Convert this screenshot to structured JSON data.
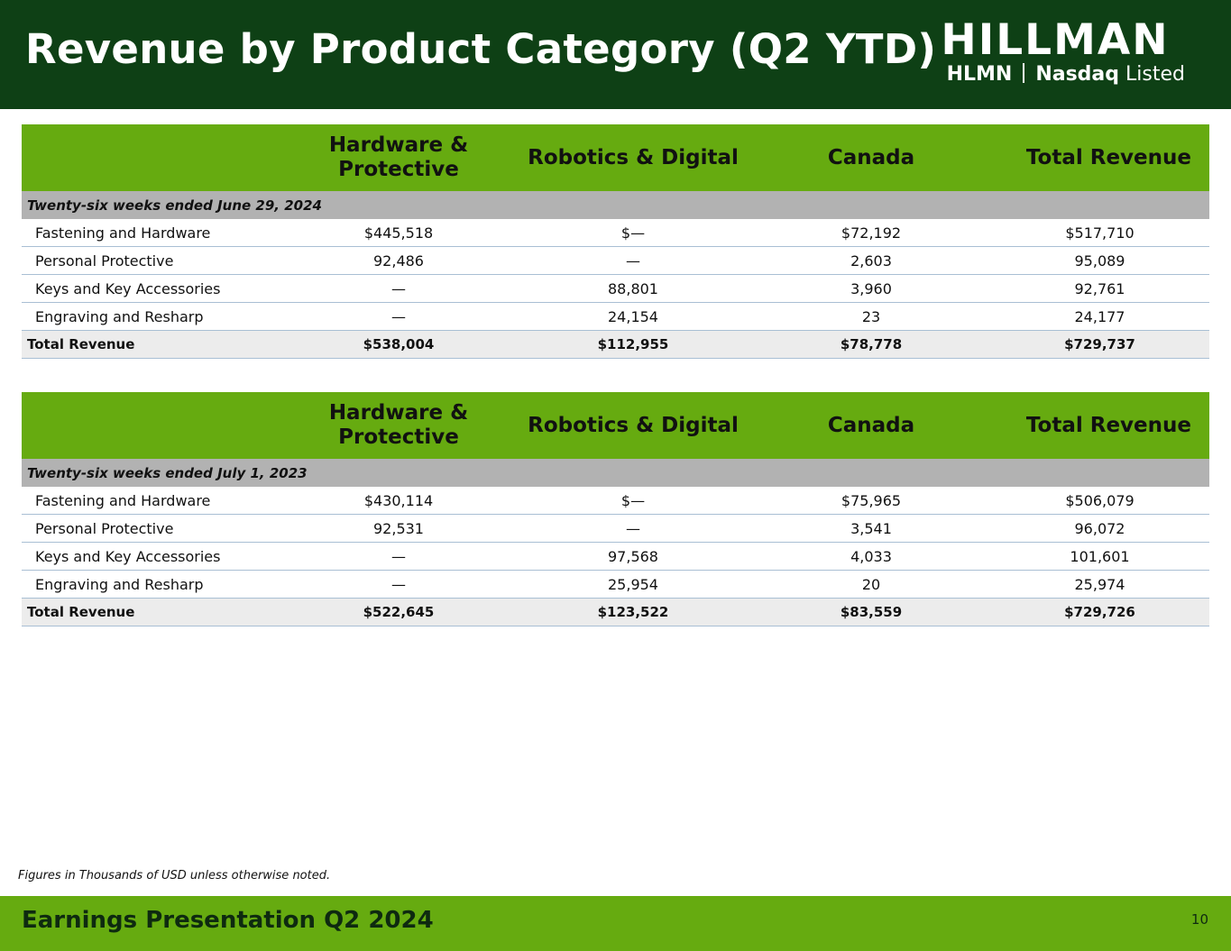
{
  "header": {
    "title": "Revenue by Product Category (Q2 YTD)",
    "logo": {
      "wordmark": "HILLMAN",
      "ticker": "HLMN",
      "exchange_bold": "Nasdaq",
      "exchange_rest": "Listed"
    }
  },
  "columns": [
    "",
    "Hardware & Protective",
    "Robotics & Digital",
    "Canada",
    "Total Revenue"
  ],
  "tables": [
    {
      "period": "Twenty-six weeks ended June 29, 2024",
      "rows": [
        {
          "label": "Fastening and Hardware",
          "values": [
            "$445,518",
            "$—",
            "$72,192",
            "$517,710"
          ]
        },
        {
          "label": "Personal Protective",
          "values": [
            "92,486",
            "—",
            "2,603",
            "95,089"
          ]
        },
        {
          "label": "Keys and Key Accessories",
          "values": [
            "—",
            "88,801",
            "3,960",
            "92,761"
          ]
        },
        {
          "label": "Engraving and Resharp",
          "values": [
            "—",
            "24,154",
            "23",
            "24,177"
          ]
        }
      ],
      "total": {
        "label": "Total Revenue",
        "values": [
          "$538,004",
          "$112,955",
          "$78,778",
          "$729,737"
        ]
      }
    },
    {
      "period": "Twenty-six weeks ended July 1, 2023",
      "rows": [
        {
          "label": "Fastening and Hardware",
          "values": [
            "$430,114",
            "$—",
            "$75,965",
            "$506,079"
          ]
        },
        {
          "label": "Personal Protective",
          "values": [
            "92,531",
            "—",
            "3,541",
            "96,072"
          ]
        },
        {
          "label": "Keys and Key Accessories",
          "values": [
            "—",
            "97,568",
            "4,033",
            "101,601"
          ]
        },
        {
          "label": "Engraving and Resharp",
          "values": [
            "—",
            "25,954",
            "20",
            "25,974"
          ]
        }
      ],
      "total": {
        "label": "Total Revenue",
        "values": [
          "$522,645",
          "$123,522",
          "$83,559",
          "$729,726"
        ]
      }
    }
  ],
  "footnote": "Figures in Thousands of USD unless otherwise noted.",
  "footer": {
    "title": "Earnings Presentation Q2 2024",
    "page_number": "10"
  },
  "colors": {
    "header_bg": "#0e4015",
    "accent_green": "#66ab10",
    "period_row_bg": "#b2b2b2",
    "total_row_bg": "#ececec"
  }
}
